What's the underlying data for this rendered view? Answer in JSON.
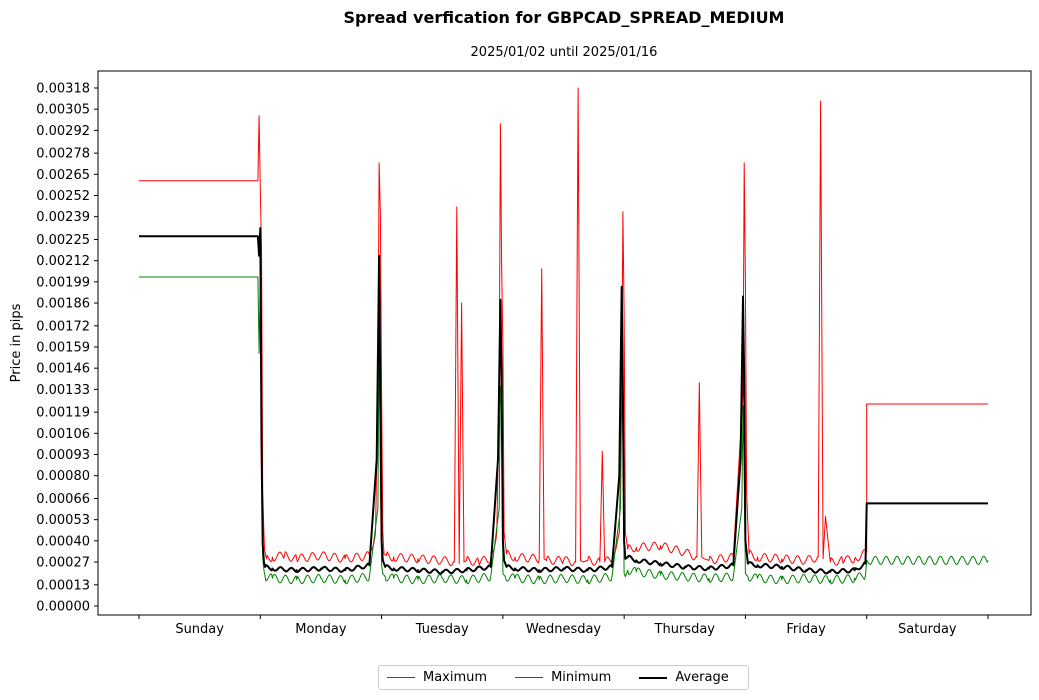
{
  "chart_data": {
    "type": "line",
    "title": "Spread verfication for GBPCAD_SPREAD_MEDIUM",
    "subtitle": "2025/01/02 until 2025/01/16",
    "xlabel": "",
    "ylabel": "Price in pips",
    "categories": [
      "Sunday",
      "Monday",
      "Tuesday",
      "Wednesday",
      "Thursday",
      "Friday",
      "Saturday"
    ],
    "x_range": [
      0,
      7
    ],
    "ylim": [
      0,
      0.0033
    ],
    "y_ticks": [
      "0.00000",
      "0.00013",
      "0.00027",
      "0.00040",
      "0.00053",
      "0.00066",
      "0.00080",
      "0.00093",
      "0.00106",
      "0.00119",
      "0.00133",
      "0.00146",
      "0.00159",
      "0.00172",
      "0.00186",
      "0.00199",
      "0.00212",
      "0.00225",
      "0.00239",
      "0.00252",
      "0.00265",
      "0.00278",
      "0.00292",
      "0.00305",
      "0.00318"
    ],
    "legend_position": "bottom-center",
    "grid": false,
    "series": [
      {
        "name": "Maximum",
        "color": "#ff0000",
        "line_width": 1,
        "x": [
          0.0,
          0.98,
          0.99,
          1.0,
          1.01,
          1.02,
          1.03,
          1.035,
          1.04,
          1.05,
          1.1,
          1.2,
          1.3,
          1.5,
          1.7,
          1.9,
          1.95,
          1.97,
          1.98,
          1.99,
          2.0,
          2.01,
          2.02,
          2.04,
          2.1,
          2.3,
          2.5,
          2.6,
          2.62,
          2.64,
          2.66,
          2.68,
          2.7,
          2.8,
          2.9,
          2.95,
          2.97,
          2.98,
          2.99,
          3.0,
          3.01,
          3.03,
          3.1,
          3.3,
          3.32,
          3.34,
          3.36,
          3.5,
          3.6,
          3.62,
          3.64,
          3.66,
          3.7,
          3.8,
          3.82,
          3.84,
          3.9,
          3.96,
          3.98,
          3.99,
          4.0,
          4.01,
          4.03,
          4.1,
          4.3,
          4.5,
          4.6,
          4.62,
          4.64,
          4.66,
          4.7,
          4.9,
          4.98,
          4.99,
          5.0,
          5.01,
          5.03,
          5.1,
          5.3,
          5.5,
          5.6,
          5.62,
          5.64,
          5.66,
          5.7,
          5.8,
          5.9,
          6.0,
          6.0001,
          7.0
        ],
        "values": [
          0.00261,
          0.00261,
          0.00301,
          0.00255,
          0.0022,
          0.0007,
          0.00045,
          0.00035,
          0.00033,
          0.00029,
          0.0003,
          0.00031,
          0.00029,
          0.00031,
          0.00029,
          0.00031,
          0.00045,
          0.0013,
          0.00272,
          0.0024,
          0.0013,
          0.00045,
          0.00032,
          0.00031,
          0.0003,
          0.00029,
          0.00028,
          0.00027,
          0.00245,
          0.00026,
          0.00186,
          0.00027,
          0.00028,
          0.00027,
          0.00029,
          0.00045,
          0.0013,
          0.00296,
          0.0021,
          0.0016,
          0.00045,
          0.00032,
          0.0003,
          0.00029,
          0.00207,
          0.00029,
          0.00028,
          0.00028,
          0.00027,
          0.00318,
          0.00028,
          0.00027,
          0.00028,
          0.00027,
          0.00095,
          0.00027,
          0.00029,
          0.00045,
          0.0013,
          0.00242,
          0.0018,
          0.00045,
          0.00035,
          0.00036,
          0.00037,
          0.00033,
          0.0003,
          0.00137,
          0.0003,
          0.00029,
          0.00028,
          0.0003,
          0.0013,
          0.00272,
          0.002,
          0.0007,
          0.00032,
          0.0003,
          0.00029,
          0.00028,
          0.0003,
          0.0031,
          0.00029,
          0.00055,
          0.00027,
          0.00028,
          0.00029,
          0.00033,
          0.00124,
          0.00124
        ]
      },
      {
        "name": "Minimum",
        "color": "#008000",
        "line_width": 1,
        "x": [
          0.0,
          0.98,
          0.99,
          1.0,
          1.01,
          1.02,
          1.03,
          1.04,
          1.1,
          1.3,
          1.5,
          1.7,
          1.9,
          1.97,
          1.98,
          1.99,
          2.0,
          2.01,
          2.03,
          2.1,
          2.3,
          2.5,
          2.7,
          2.9,
          2.97,
          2.98,
          2.99,
          3.0,
          3.02,
          3.1,
          3.3,
          3.5,
          3.7,
          3.9,
          3.97,
          3.98,
          3.99,
          4.0,
          4.01,
          4.03,
          4.1,
          4.3,
          4.5,
          4.7,
          4.9,
          4.97,
          4.98,
          4.99,
          5.0,
          5.02,
          5.1,
          5.3,
          5.5,
          5.7,
          5.9,
          5.99,
          6.0,
          7.0
        ],
        "values": [
          0.00202,
          0.00202,
          0.00155,
          0.002,
          0.0011,
          0.0003,
          0.00022,
          0.00018,
          0.00017,
          0.00016,
          0.00017,
          0.00016,
          0.00018,
          0.0006,
          0.0017,
          0.00085,
          0.00025,
          0.0002,
          0.00018,
          0.00017,
          0.00016,
          0.00017,
          0.00016,
          0.00018,
          0.0006,
          0.00135,
          0.0012,
          0.0002,
          0.00018,
          0.00017,
          0.00016,
          0.00017,
          0.00016,
          0.00018,
          0.0006,
          0.0013,
          0.0011,
          0.0002,
          0.00018,
          0.00022,
          0.00021,
          0.00019,
          0.00018,
          0.00017,
          0.00018,
          0.0006,
          0.00123,
          0.0008,
          0.0002,
          0.00018,
          0.00017,
          0.00016,
          0.00017,
          0.00016,
          0.00017,
          0.00019,
          0.00028,
          0.00028
        ]
      },
      {
        "name": "Average",
        "color": "#000000",
        "line_width": 2,
        "x": [
          0.0,
          0.98,
          0.99,
          1.0,
          1.01,
          1.02,
          1.03,
          1.04,
          1.1,
          1.3,
          1.5,
          1.7,
          1.9,
          1.96,
          1.98,
          1.99,
          2.0,
          2.01,
          2.03,
          2.1,
          2.3,
          2.5,
          2.7,
          2.9,
          2.96,
          2.98,
          2.99,
          3.0,
          3.01,
          3.03,
          3.1,
          3.3,
          3.5,
          3.7,
          3.9,
          3.96,
          3.98,
          3.99,
          4.0,
          4.01,
          4.03,
          4.1,
          4.3,
          4.5,
          4.7,
          4.9,
          4.96,
          4.98,
          4.99,
          5.0,
          5.02,
          5.1,
          5.3,
          5.5,
          5.7,
          5.9,
          5.99,
          6.0,
          7.0
        ],
        "values": [
          0.00227,
          0.00227,
          0.00215,
          0.00232,
          0.001,
          0.00038,
          0.00027,
          0.00024,
          0.00023,
          0.00022,
          0.00023,
          0.00022,
          0.00025,
          0.0009,
          0.00215,
          0.00125,
          0.0004,
          0.00028,
          0.00024,
          0.00023,
          0.00022,
          0.00021,
          0.00022,
          0.00024,
          0.0009,
          0.00188,
          0.0014,
          0.0004,
          0.00028,
          0.00024,
          0.00023,
          0.00022,
          0.00023,
          0.00022,
          0.00024,
          0.0008,
          0.00196,
          0.0013,
          0.0004,
          0.00029,
          0.0003,
          0.00028,
          0.00026,
          0.00024,
          0.00023,
          0.00025,
          0.0009,
          0.0019,
          0.0014,
          0.0004,
          0.00026,
          0.00025,
          0.00024,
          0.00022,
          0.00021,
          0.00022,
          0.00026,
          0.00063,
          0.00063
        ]
      }
    ]
  }
}
